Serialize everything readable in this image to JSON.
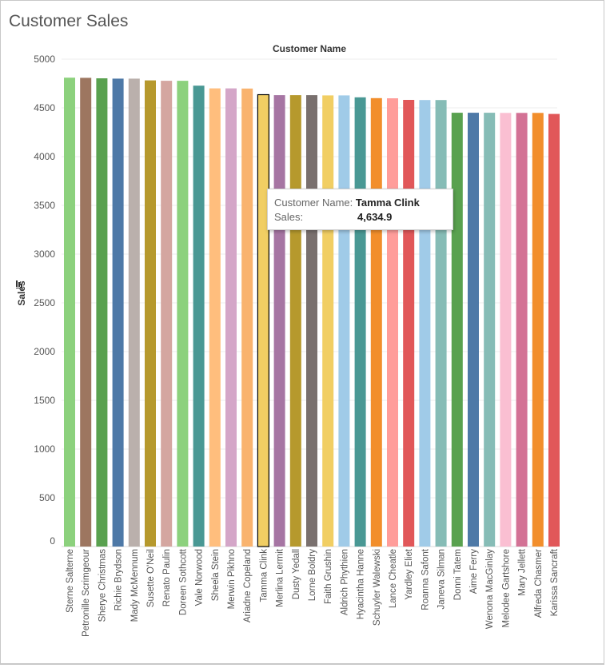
{
  "title": "Customer Sales",
  "tooltip": {
    "name_label": "Customer Name:",
    "name_value": "Tamma Clink",
    "sales_label": "Sales:",
    "sales_value": "4,634.9"
  },
  "chart_data": {
    "type": "bar",
    "title": "Customer Sales",
    "xlabel": "Customer Name",
    "ylabel": "Sales",
    "ylim": [
      0,
      5000
    ],
    "yticks": [
      0,
      500,
      1000,
      1500,
      2000,
      2500,
      3000,
      3500,
      4000,
      4500,
      5000
    ],
    "grid": true,
    "sorted": "descending",
    "highlighted": "Tamma Clink",
    "categories": [
      "Sterne Salterne",
      "Petronille Scrimgeour",
      "Sherye Christmas",
      "Richie Brydson",
      "Mady McMennum",
      "Susette O'Neil",
      "Renato Paulin",
      "Doreen Sothcott",
      "Vale Norwood",
      "Sheela Stein",
      "Merwin Pikhno",
      "Ariadne Copeland",
      "Tamma Clink",
      "Merlina Lermit",
      "Dusty Yedall",
      "Lorne Boldry",
      "Faith Grushin",
      "Aldrich Phythien",
      "Hyacintha Hanne",
      "Schuyler Walewski",
      "Lance Cheatle",
      "Yardley Eliet",
      "Roanna Safont",
      "Janeva Silman",
      "Donni Tatem",
      "Aime Ferry",
      "Wenona MacGinlay",
      "Melodee Gartshore",
      "Mary Jellett",
      "Alfreda Chasmer",
      "Karissa Sancraft"
    ],
    "values": [
      4810,
      4808,
      4803,
      4800,
      4800,
      4782,
      4778,
      4778,
      4728,
      4700,
      4700,
      4698,
      4634.9,
      4630,
      4630,
      4630,
      4628,
      4628,
      4608,
      4600,
      4598,
      4582,
      4580,
      4580,
      4450,
      4450,
      4450,
      4448,
      4448,
      4448,
      4438
    ],
    "colors": [
      "#8cd17d",
      "#9d7660",
      "#59a14f",
      "#4e79a7",
      "#bab0ac",
      "#b6992d",
      "#d4a6a0",
      "#8cd17d",
      "#499894",
      "#ffbe7d",
      "#d4a6c8",
      "#f9b36e",
      "#f1ce63",
      "#a675a3",
      "#b6992d",
      "#79706e",
      "#f1ce63",
      "#a0cbe8",
      "#499894",
      "#f28e2b",
      "#ff9d9a",
      "#e15759",
      "#a0cbe8",
      "#86bcb6",
      "#59a14f",
      "#4e79a7",
      "#86bcb6",
      "#fabfd2",
      "#d37295",
      "#f28e2b",
      "#e15759"
    ]
  }
}
